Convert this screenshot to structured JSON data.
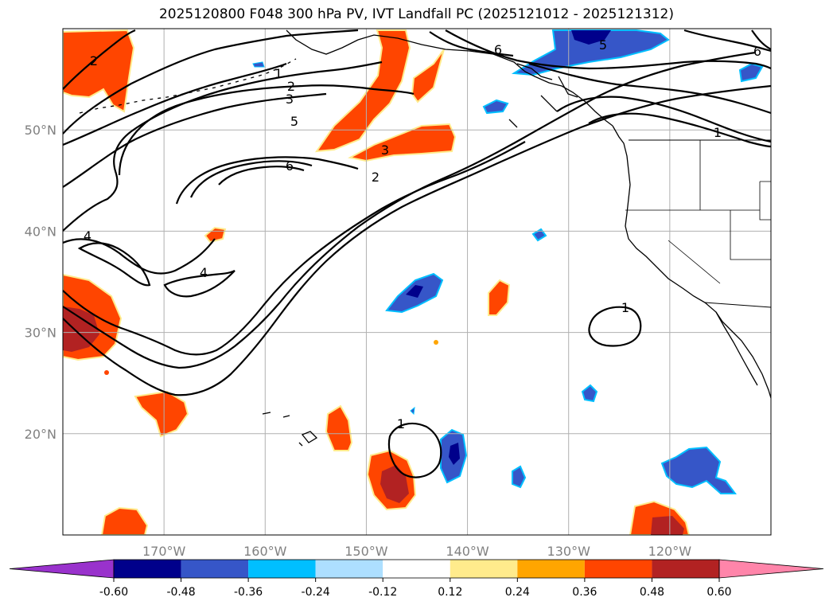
{
  "title": "2025120800 F048 300 hPa PV, IVT Landfall PC (2025121012 - 2025121312)",
  "map": {
    "lon_min": -180,
    "lon_max": -110,
    "lat_min": 10,
    "lat_max": 60,
    "lon_ticks": [
      {
        "value": -170,
        "label": "170°W"
      },
      {
        "value": -160,
        "label": "160°W"
      },
      {
        "value": -150,
        "label": "150°W"
      },
      {
        "value": -140,
        "label": "140°W"
      },
      {
        "value": -130,
        "label": "130°W"
      },
      {
        "value": -120,
        "label": "120°W"
      }
    ],
    "lat_ticks": [
      {
        "value": 20,
        "label": "20°N"
      },
      {
        "value": 30,
        "label": "30°N"
      },
      {
        "value": 40,
        "label": "40°N"
      },
      {
        "value": 50,
        "label": "50°N"
      }
    ],
    "grid": true
  },
  "colorbar": {
    "orientation": "horizontal",
    "extend": "both",
    "levels": [
      "-0.60",
      "-0.48",
      "-0.36",
      "-0.24",
      "-0.12",
      "0.12",
      "0.24",
      "0.36",
      "0.48",
      "0.60"
    ],
    "colors": [
      "#9932cc",
      "#00008b",
      "#3656c8",
      "#00bfff",
      "#addfff",
      "#ffffff",
      "#ffeb8c",
      "#ffa500",
      "#ff4500",
      "#b22222",
      "#ff85aa"
    ]
  },
  "contours": {
    "color": "#000000",
    "labels": [
      "1",
      "2",
      "3",
      "5",
      "6",
      "4",
      "4",
      "3",
      "2",
      "1",
      "1",
      "1",
      "6",
      "5",
      "2",
      "6"
    ]
  }
}
